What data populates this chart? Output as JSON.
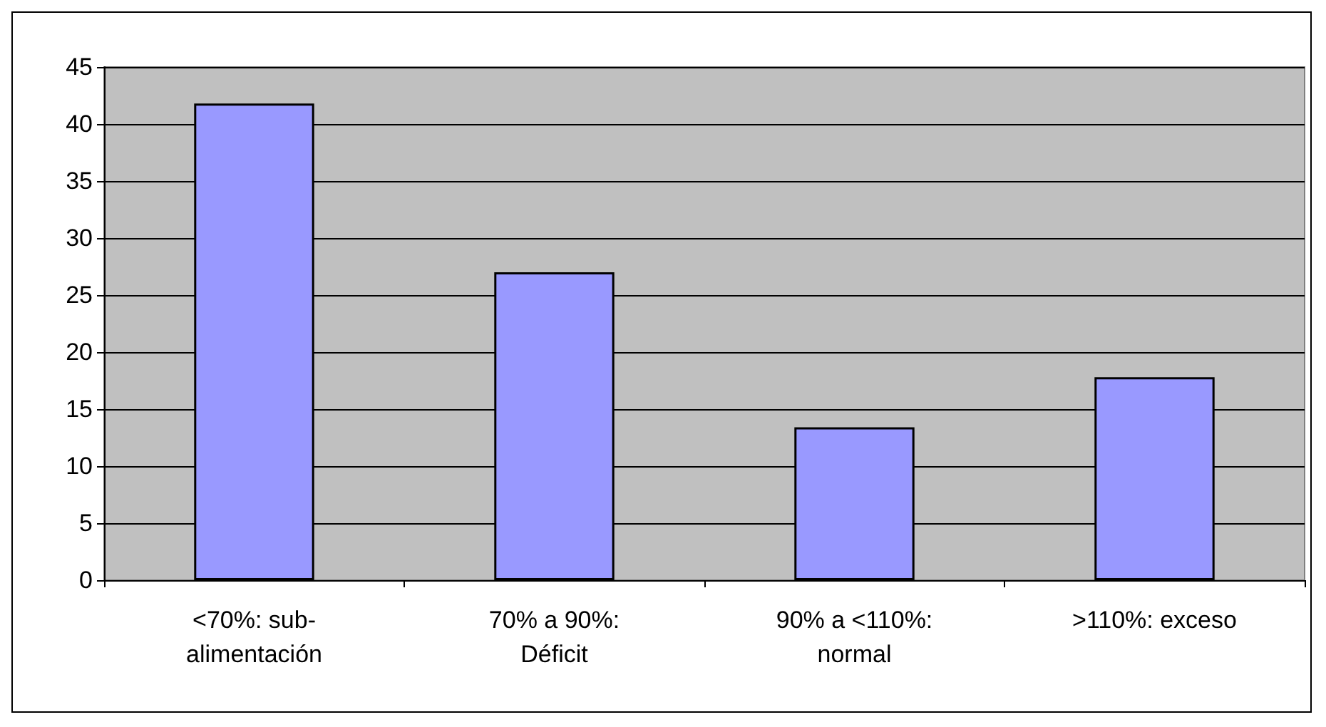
{
  "chart_data": {
    "type": "bar",
    "categories": [
      "<70%: sub-\nalimentación",
      "70% a 90%:\nDéficit",
      "90% a <110%:\nnormal",
      ">110%: exceso"
    ],
    "values": [
      41.8,
      27,
      13.4,
      17.8
    ],
    "color": "#9999ff",
    "ylim": [
      0,
      45
    ],
    "yticks": [
      0,
      5,
      10,
      15,
      20,
      25,
      30,
      35,
      40,
      45
    ],
    "grid": "y"
  }
}
